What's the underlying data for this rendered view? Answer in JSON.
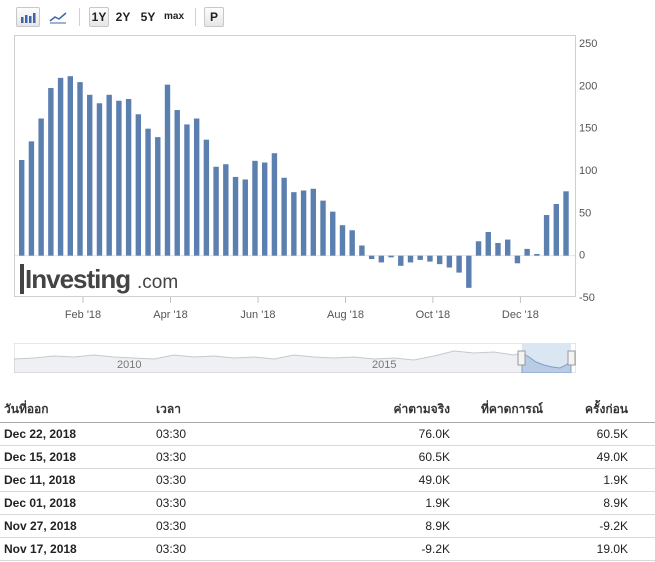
{
  "toolbar": {
    "icons": [
      "bar-chart-icon",
      "line-chart-icon"
    ],
    "ranges": [
      "1Y",
      "2Y",
      "5Y",
      "max"
    ],
    "active_range": "1Y",
    "p_label": "P"
  },
  "watermark": {
    "brand": "Investing",
    "suffix": ".com"
  },
  "chart_data": {
    "type": "bar",
    "ylim": [
      -50,
      250
    ],
    "yticks": [
      250,
      200,
      150,
      100,
      50,
      0,
      -50
    ],
    "xtick_labels": [
      "Feb '18",
      "Apr '18",
      "Jun '18",
      "Aug '18",
      "Oct '18",
      "Dec '18"
    ],
    "xtick_index": [
      6,
      15,
      24,
      33,
      42,
      51
    ],
    "values": [
      113,
      135,
      162,
      198,
      210,
      212,
      205,
      190,
      180,
      190,
      183,
      185,
      167,
      150,
      140,
      202,
      172,
      155,
      162,
      137,
      105,
      108,
      93,
      90,
      112,
      110,
      121,
      92,
      75,
      77,
      79,
      65,
      52,
      36,
      30,
      12,
      -4,
      -8,
      -2,
      -12,
      -8,
      -5,
      -7,
      -10,
      -14,
      -20,
      -38,
      17,
      28,
      15,
      19,
      -9,
      8,
      2,
      48,
      61,
      76
    ],
    "color": "#5b7faf"
  },
  "navigator": {
    "labels": [
      "2010",
      "2015"
    ]
  },
  "table": {
    "headers": [
      "วันที่ออก",
      "เวลา",
      "ค่าตามจริง",
      "ที่คาดการณ์",
      "ครั้งก่อน"
    ],
    "rows": [
      {
        "date": "Dec 22, 2018",
        "time": "03:30",
        "actual": "76.0K",
        "forecast": "",
        "previous": "60.5K"
      },
      {
        "date": "Dec 15, 2018",
        "time": "03:30",
        "actual": "60.5K",
        "forecast": "",
        "previous": "49.0K"
      },
      {
        "date": "Dec 11, 2018",
        "time": "03:30",
        "actual": "49.0K",
        "forecast": "",
        "previous": "1.9K"
      },
      {
        "date": "Dec 01, 2018",
        "time": "03:30",
        "actual": "1.9K",
        "forecast": "",
        "previous": "8.9K"
      },
      {
        "date": "Nov 27, 2018",
        "time": "03:30",
        "actual": "8.9K",
        "forecast": "",
        "previous": "-9.2K"
      },
      {
        "date": "Nov 17, 2018",
        "time": "03:30",
        "actual": "-9.2K",
        "forecast": "",
        "previous": "19.0K"
      }
    ]
  }
}
